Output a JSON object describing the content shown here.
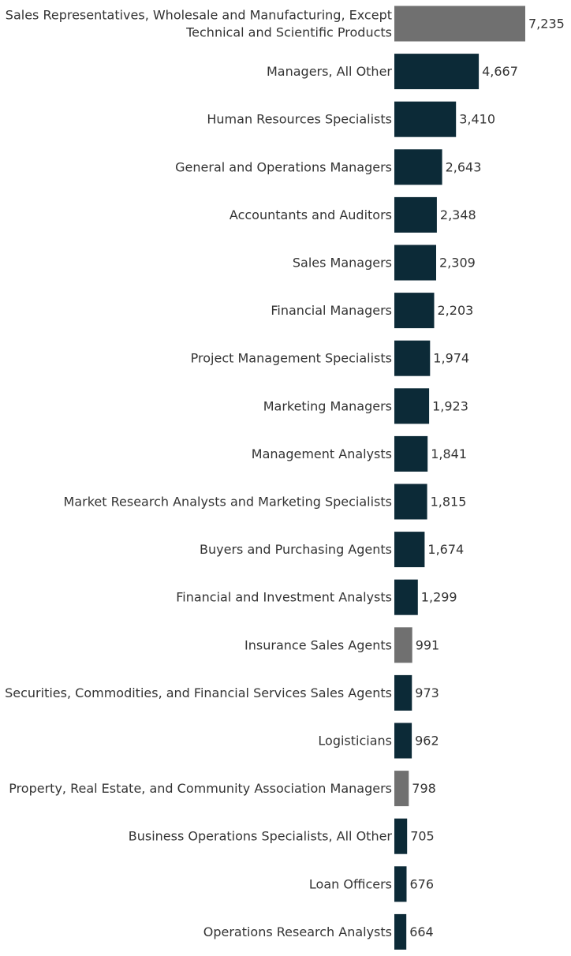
{
  "chart_data": {
    "type": "bar",
    "orientation": "horizontal",
    "categories": [
      [
        "Sales Representatives, Wholesale and Manufacturing, Except",
        "Technical and Scientific Products"
      ],
      [
        "Managers, All Other"
      ],
      [
        "Human Resources Specialists"
      ],
      [
        "General and Operations Managers"
      ],
      [
        "Accountants and Auditors"
      ],
      [
        "Sales Managers"
      ],
      [
        "Financial Managers"
      ],
      [
        "Project Management Specialists"
      ],
      [
        "Marketing Managers"
      ],
      [
        "Management Analysts"
      ],
      [
        "Market Research Analysts and Marketing Specialists"
      ],
      [
        "Buyers and Purchasing Agents"
      ],
      [
        "Financial and Investment Analysts"
      ],
      [
        "Insurance Sales Agents"
      ],
      [
        "Securities, Commodities, and Financial Services Sales Agents"
      ],
      [
        "Logisticians"
      ],
      [
        "Property, Real Estate, and Community Association Managers"
      ],
      [
        "Business Operations Specialists, All Other"
      ],
      [
        "Loan Officers"
      ],
      [
        "Operations Research Analysts"
      ]
    ],
    "values": [
      7235,
      4667,
      3410,
      2643,
      2348,
      2309,
      2203,
      1974,
      1923,
      1841,
      1815,
      1674,
      1299,
      991,
      973,
      962,
      798,
      705,
      676,
      664
    ],
    "value_labels": [
      "7,235",
      "4,667",
      "3,410",
      "2,643",
      "2,348",
      "2,309",
      "2,203",
      "1,974",
      "1,923",
      "1,841",
      "1,815",
      "1,674",
      "1,299",
      "991",
      "973",
      "962",
      "798",
      "705",
      "676",
      "664"
    ],
    "highlighted": [
      true,
      false,
      false,
      false,
      false,
      false,
      false,
      false,
      false,
      false,
      false,
      false,
      false,
      true,
      false,
      false,
      true,
      false,
      false,
      false
    ],
    "colors": {
      "bar": "#0c2a37",
      "highlight": "#707070",
      "text": "#333333"
    },
    "title": "",
    "xlabel": "",
    "ylabel": "",
    "xlim": [
      0,
      7235
    ],
    "grid": false,
    "legend": "none"
  }
}
